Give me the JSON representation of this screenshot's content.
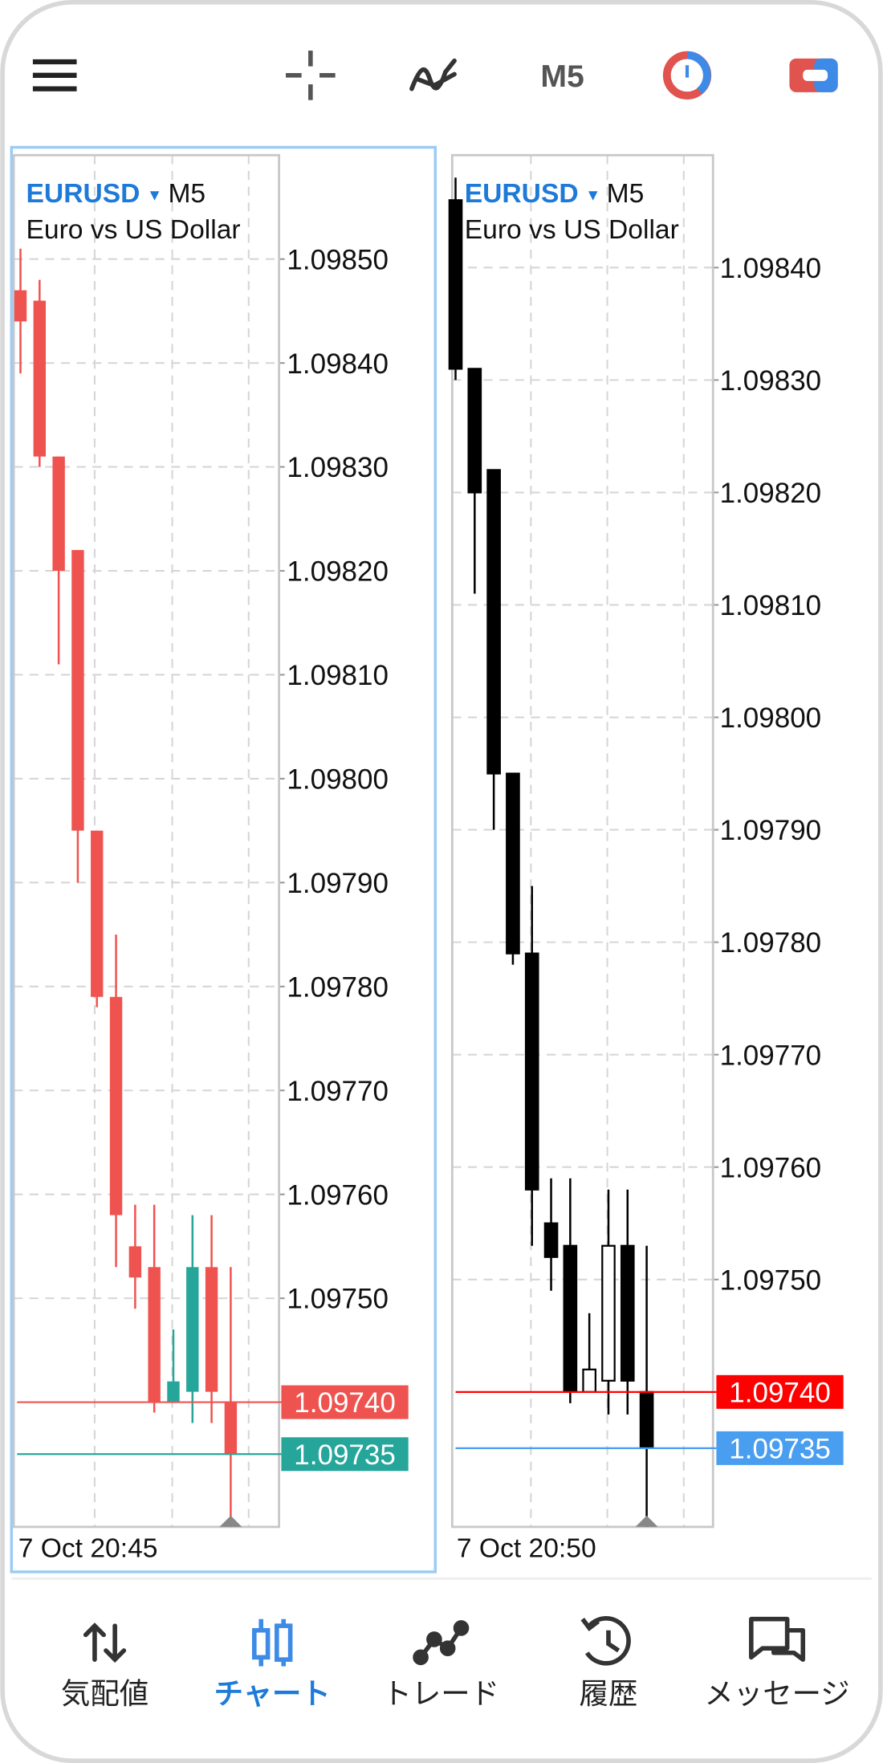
{
  "toolbar": {
    "timeframe": "M5"
  },
  "chart_data": [
    {
      "type": "candlestick",
      "symbol": "EURUSD",
      "timeframe": "M5",
      "description": "Euro vs US Dollar",
      "open": [
        1.09847,
        1.09846,
        1.09831,
        1.09822,
        1.09795,
        1.09779,
        1.09755,
        1.09753,
        1.0974,
        1.09741,
        1.09753,
        1.0974
      ],
      "high": [
        1.09851,
        1.09848,
        1.09831,
        1.09822,
        1.09795,
        1.09785,
        1.09759,
        1.09759,
        1.09747,
        1.09758,
        1.09758,
        1.09753
      ],
      "low": [
        1.09839,
        1.0983,
        1.09811,
        1.0979,
        1.09778,
        1.09753,
        1.09749,
        1.09739,
        1.0974,
        1.09738,
        1.09738,
        1.09728
      ],
      "close": [
        1.09844,
        1.09831,
        1.0982,
        1.09795,
        1.09779,
        1.09758,
        1.09752,
        1.0974,
        1.09742,
        1.09753,
        1.09741,
        1.09735
      ],
      "bull_color": "#26a69a",
      "bear_color": "#ef5350",
      "ylim": [
        1.09728,
        1.0986
      ],
      "yticks": [
        {
          "value": 1.0985,
          "label": "1.09850"
        },
        {
          "value": 1.0984,
          "label": "1.09840"
        },
        {
          "value": 1.0983,
          "label": "1.09830"
        },
        {
          "value": 1.0982,
          "label": "1.09820"
        },
        {
          "value": 1.0981,
          "label": "1.09810"
        },
        {
          "value": 1.098,
          "label": "1.09800"
        },
        {
          "value": 1.0979,
          "label": "1.09790"
        },
        {
          "value": 1.0978,
          "label": "1.09780"
        },
        {
          "value": 1.0977,
          "label": "1.09770"
        },
        {
          "value": 1.0976,
          "label": "1.09760"
        },
        {
          "value": 1.0975,
          "label": "1.09750"
        }
      ],
      "price_lines": [
        {
          "value": 1.0974,
          "label": "1.09740",
          "color": "#ef5350"
        },
        {
          "value": 1.09735,
          "label": "1.09735",
          "color": "#26a69a"
        }
      ],
      "x_label": "7 Oct 20:45",
      "grid": true
    },
    {
      "type": "candlestick",
      "symbol": "EURUSD",
      "timeframe": "M5",
      "description": "Euro vs US Dollar",
      "open": [
        1.09846,
        1.09831,
        1.09822,
        1.09795,
        1.09779,
        1.09755,
        1.09753,
        1.0974,
        1.09741,
        1.09753,
        1.0974
      ],
      "high": [
        1.09848,
        1.09831,
        1.09822,
        1.09795,
        1.09785,
        1.09759,
        1.09759,
        1.09747,
        1.09758,
        1.09758,
        1.09753
      ],
      "low": [
        1.0983,
        1.09811,
        1.0979,
        1.09778,
        1.09753,
        1.09749,
        1.09739,
        1.0974,
        1.09738,
        1.09738,
        1.09728
      ],
      "close": [
        1.09831,
        1.0982,
        1.09795,
        1.09779,
        1.09758,
        1.09752,
        1.0974,
        1.09742,
        1.09753,
        1.09741,
        1.09735
      ],
      "bull_color": "#ffffff",
      "bear_color": "#000000",
      "outline": "#000000",
      "ylim": [
        1.09728,
        1.0985
      ],
      "yticks": [
        {
          "value": 1.0984,
          "label": "1.09840"
        },
        {
          "value": 1.0983,
          "label": "1.09830"
        },
        {
          "value": 1.0982,
          "label": "1.09820"
        },
        {
          "value": 1.0981,
          "label": "1.09810"
        },
        {
          "value": 1.098,
          "label": "1.09800"
        },
        {
          "value": 1.0979,
          "label": "1.09790"
        },
        {
          "value": 1.0978,
          "label": "1.09780"
        },
        {
          "value": 1.0977,
          "label": "1.09770"
        },
        {
          "value": 1.0976,
          "label": "1.09760"
        },
        {
          "value": 1.0975,
          "label": "1.09750"
        }
      ],
      "price_lines": [
        {
          "value": 1.0974,
          "label": "1.09740",
          "color": "#ff0000"
        },
        {
          "value": 1.09735,
          "label": "1.09735",
          "color": "#4a9ef0"
        }
      ],
      "x_label": "7 Oct 20:50",
      "grid": true
    }
  ],
  "nav": {
    "items": [
      "気配値",
      "チャート",
      "トレード",
      "履歴",
      "メッセージ"
    ],
    "active": 1
  }
}
